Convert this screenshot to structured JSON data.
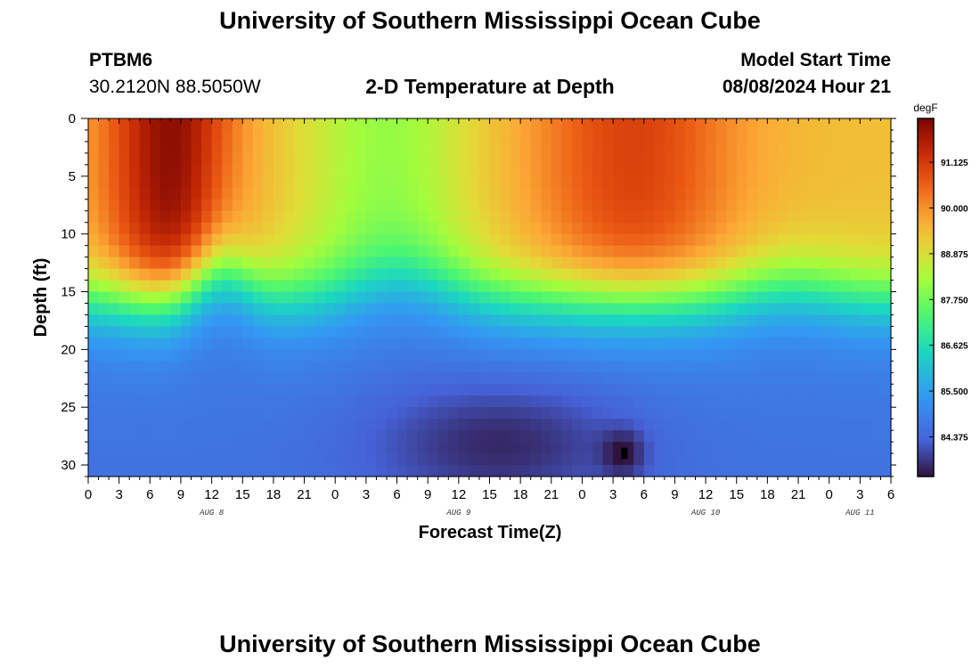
{
  "header": {
    "title": "University of Southern Mississippi Ocean Cube",
    "station": "PTBM6",
    "coords": "30.2120N  88.5050W",
    "plot_title": "2-D Temperature at Depth",
    "model_label": "Model Start Time",
    "model_time": "08/08/2024 Hour 21"
  },
  "footer": {
    "title": "University of Southern Mississippi Ocean Cube"
  },
  "chart_data": {
    "type": "heatmap",
    "title": "2-D Temperature at Depth",
    "xlabel": "Forecast Time(Z)",
    "ylabel": "Depth (ft)",
    "x_range_hours": [
      0,
      78
    ],
    "y_range_ft": [
      0,
      31
    ],
    "x_ticks": [
      {
        "hour": 0,
        "label": "0"
      },
      {
        "hour": 3,
        "label": "3"
      },
      {
        "hour": 6,
        "label": "6"
      },
      {
        "hour": 9,
        "label": "9"
      },
      {
        "hour": 12,
        "label": "12"
      },
      {
        "hour": 15,
        "label": "15"
      },
      {
        "hour": 18,
        "label": "18"
      },
      {
        "hour": 21,
        "label": "21"
      },
      {
        "hour": 24,
        "label": "0"
      },
      {
        "hour": 27,
        "label": "3"
      },
      {
        "hour": 30,
        "label": "6"
      },
      {
        "hour": 33,
        "label": "9"
      },
      {
        "hour": 36,
        "label": "12"
      },
      {
        "hour": 39,
        "label": "15"
      },
      {
        "hour": 42,
        "label": "18"
      },
      {
        "hour": 45,
        "label": "21"
      },
      {
        "hour": 48,
        "label": "0"
      },
      {
        "hour": 51,
        "label": "3"
      },
      {
        "hour": 54,
        "label": "6"
      },
      {
        "hour": 57,
        "label": "9"
      },
      {
        "hour": 60,
        "label": "12"
      },
      {
        "hour": 63,
        "label": "15"
      },
      {
        "hour": 66,
        "label": "18"
      },
      {
        "hour": 69,
        "label": "21"
      },
      {
        "hour": 72,
        "label": "0"
      },
      {
        "hour": 75,
        "label": "3"
      },
      {
        "hour": 78,
        "label": "6"
      }
    ],
    "date_labels": [
      {
        "hour": 12,
        "label": "AUG 8"
      },
      {
        "hour": 36,
        "label": "AUG 9"
      },
      {
        "hour": 60,
        "label": "AUG 10"
      },
      {
        "hour": 75,
        "label": "AUG 11"
      }
    ],
    "y_ticks": [
      0,
      5,
      10,
      15,
      20,
      25,
      30
    ],
    "colorbar": {
      "unit": "degF",
      "range": [
        83.4,
        92.2
      ],
      "ticks": [
        "91.125",
        "90.000",
        "88.875",
        "87.750",
        "86.625",
        "85.500",
        "84.375"
      ],
      "tick_values": [
        91.125,
        90.0,
        88.875,
        87.75,
        86.625,
        85.5,
        84.375
      ]
    },
    "grid_resolution": {
      "hour_step": 1,
      "depth_step_ft": 1
    },
    "description_points": [
      {
        "hour": 9,
        "depth": 4,
        "temp": 92.0
      },
      {
        "hour": 13,
        "depth": 22,
        "temp": 85.5
      },
      {
        "hour": 30,
        "depth": 6,
        "temp": 88.0
      },
      {
        "hour": 50,
        "depth": 6,
        "temp": 90.8
      },
      {
        "hour": 52,
        "depth": 29,
        "temp": 83.3
      },
      {
        "hour": 72,
        "depth": 2,
        "temp": 88.7
      }
    ]
  }
}
